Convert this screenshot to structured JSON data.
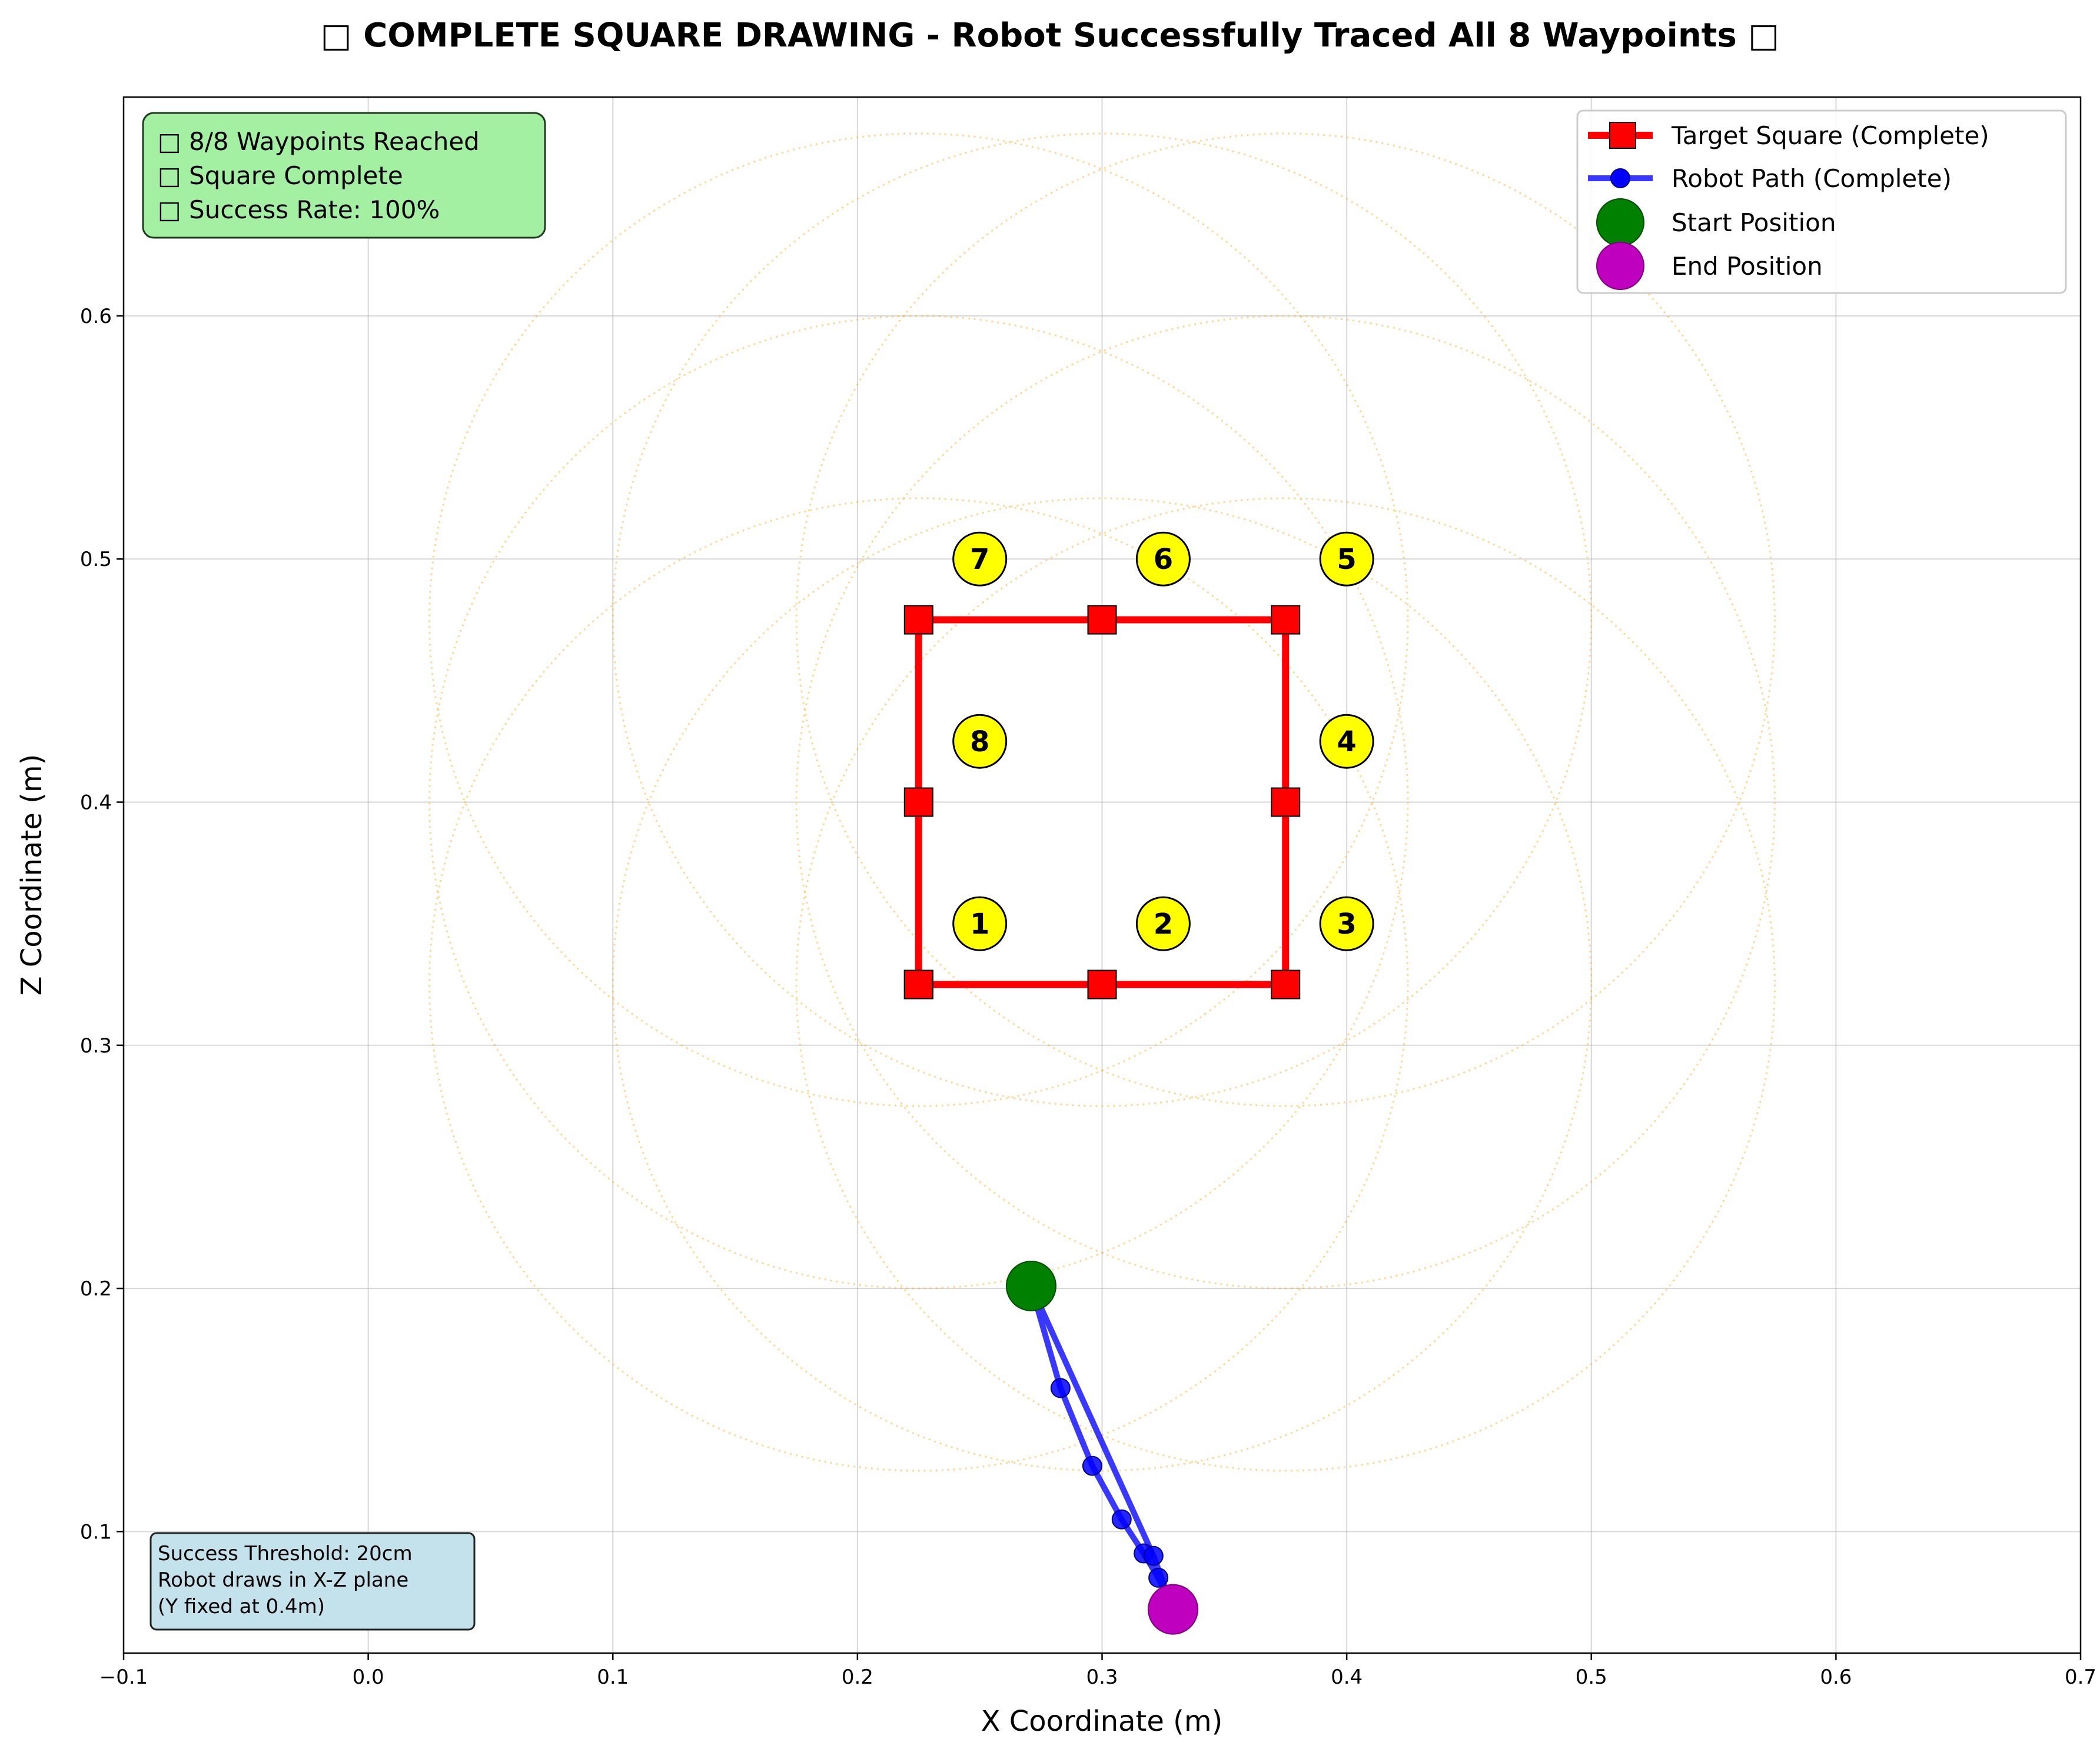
{
  "chart_data": {
    "type": "line",
    "title": "□ COMPLETE SQUARE DRAWING - Robot Successfully Traced All 8 Waypoints □",
    "xlabel": "X Coordinate (m)",
    "ylabel": "Z Coordinate (m)",
    "xlim": [
      -0.1,
      0.7
    ],
    "ylim": [
      0.05,
      0.69
    ],
    "xticks": [
      -0.1,
      0.0,
      0.1,
      0.2,
      0.3,
      0.4,
      0.5,
      0.6,
      0.7
    ],
    "xtick_labels": [
      "−0.1",
      "0.0",
      "0.1",
      "0.2",
      "0.3",
      "0.4",
      "0.5",
      "0.6",
      "0.7"
    ],
    "yticks": [
      0.1,
      0.2,
      0.3,
      0.4,
      0.5,
      0.6
    ],
    "ytick_labels": [
      "0.1",
      "0.2",
      "0.3",
      "0.4",
      "0.5",
      "0.6"
    ],
    "grid": true,
    "legend_position": "top-right",
    "series": [
      {
        "name": "Target Square (Complete)",
        "color": "#ff0000",
        "marker": "square",
        "x": [
          0.225,
          0.3,
          0.375,
          0.375,
          0.375,
          0.3,
          0.225,
          0.225,
          0.225
        ],
        "y": [
          0.325,
          0.325,
          0.325,
          0.4,
          0.475,
          0.475,
          0.475,
          0.4,
          0.325
        ]
      },
      {
        "name": "Robot Path (Complete)",
        "color": "#0000ff",
        "marker": "circle",
        "x": [
          0.271,
          0.283,
          0.296,
          0.308,
          0.317,
          0.323,
          0.329,
          0.321,
          0.271
        ],
        "y": [
          0.201,
          0.159,
          0.127,
          0.105,
          0.091,
          0.081,
          0.068,
          0.09,
          0.201
        ]
      }
    ],
    "start_position": {
      "name": "Start Position",
      "x": 0.271,
      "y": 0.201,
      "color": "#008000"
    },
    "end_position": {
      "name": "End Position",
      "x": 0.329,
      "y": 0.068,
      "color": "#bf00bf"
    },
    "waypoint_labels": [
      {
        "label": "1",
        "x": 0.25,
        "y": 0.35
      },
      {
        "label": "2",
        "x": 0.325,
        "y": 0.35
      },
      {
        "label": "3",
        "x": 0.4,
        "y": 0.35
      },
      {
        "label": "4",
        "x": 0.4,
        "y": 0.425
      },
      {
        "label": "5",
        "x": 0.4,
        "y": 0.5
      },
      {
        "label": "6",
        "x": 0.325,
        "y": 0.5
      },
      {
        "label": "7",
        "x": 0.25,
        "y": 0.5
      },
      {
        "label": "8",
        "x": 0.25,
        "y": 0.425
      }
    ],
    "threshold_circles": {
      "radius": 0.2,
      "color": "#ffa500",
      "centers": [
        {
          "x": 0.225,
          "y": 0.325
        },
        {
          "x": 0.3,
          "y": 0.325
        },
        {
          "x": 0.375,
          "y": 0.325
        },
        {
          "x": 0.375,
          "y": 0.4
        },
        {
          "x": 0.375,
          "y": 0.475
        },
        {
          "x": 0.3,
          "y": 0.475
        },
        {
          "x": 0.225,
          "y": 0.475
        },
        {
          "x": 0.225,
          "y": 0.4
        }
      ]
    },
    "info_box": {
      "lines": [
        "□ 8/8 Waypoints Reached",
        "□ Square Complete",
        "□ Success Rate: 100%"
      ],
      "background": "#a3f0a3"
    },
    "note_box": {
      "lines": [
        "Success Threshold: 20cm",
        "Robot draws in X-Z plane",
        "(Y fixed at 0.4m)"
      ],
      "background": "#c3e2ec"
    }
  }
}
